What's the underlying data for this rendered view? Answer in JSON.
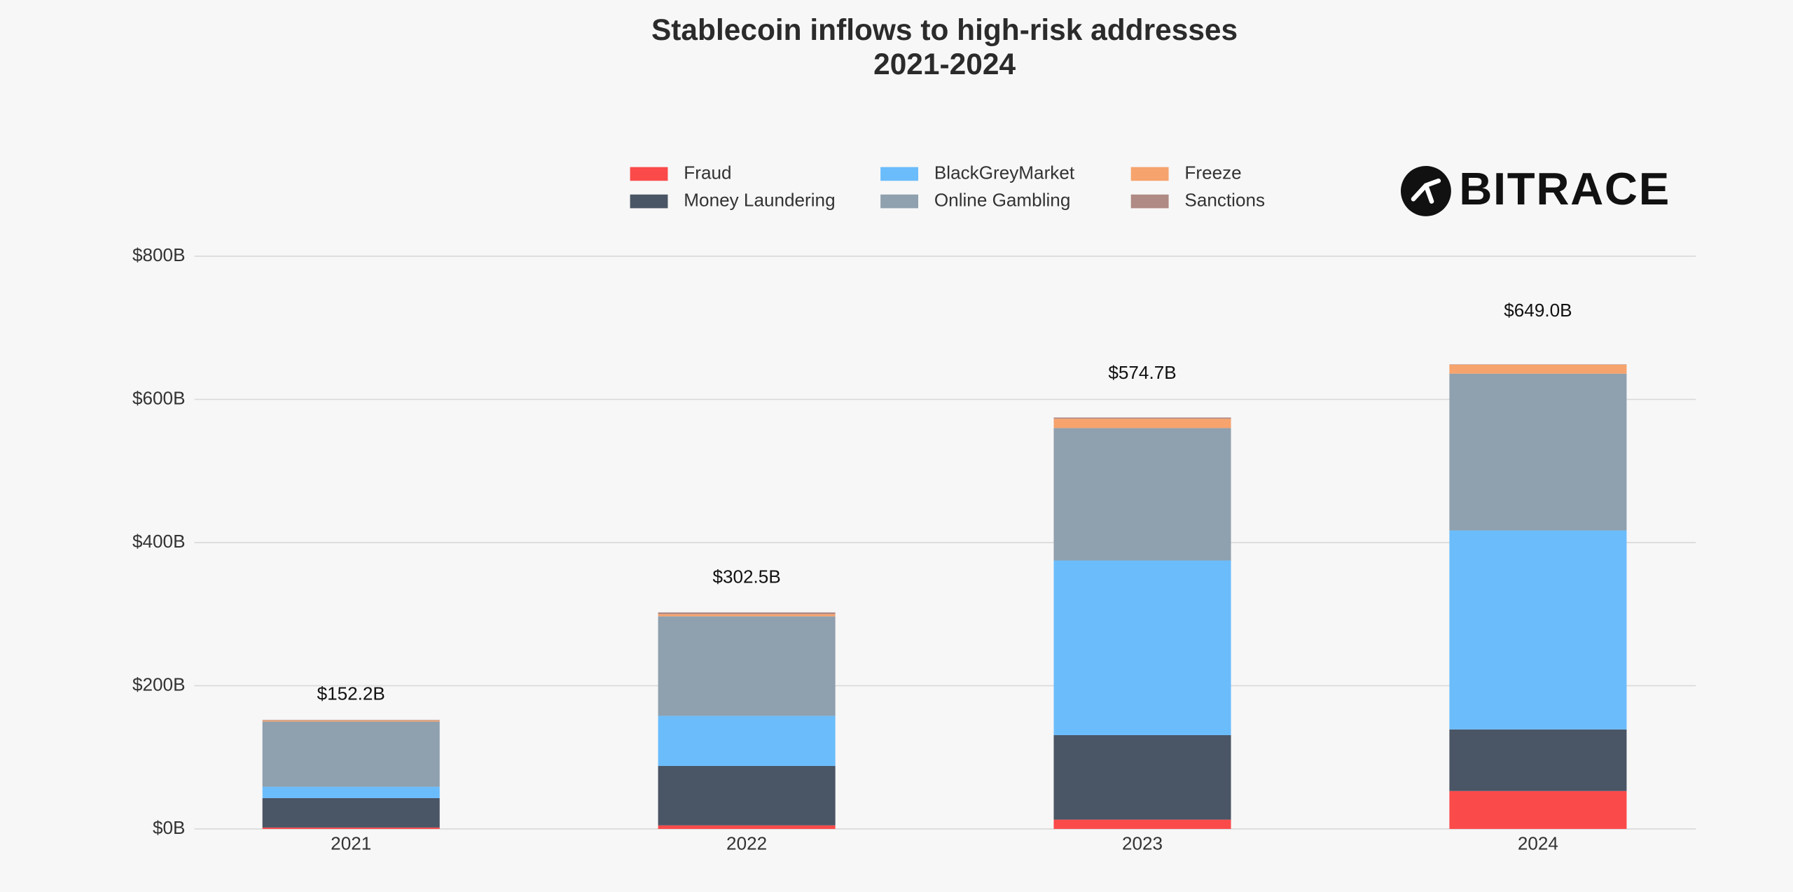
{
  "chart_data": {
    "type": "stacked-bar",
    "title": "Stablecoin inflows to high-risk addresses",
    "subtitle": "2021-2024",
    "logo": "BITRACE",
    "categories": [
      "2021",
      "2022",
      "2023",
      "2024"
    ],
    "series": [
      {
        "name": "Fraud",
        "color": "#fb4a4a",
        "values": [
          2,
          5,
          13,
          53
        ]
      },
      {
        "name": "Money Laundering",
        "color": "#4a5565",
        "values": [
          41,
          83,
          118,
          86
        ]
      },
      {
        "name": "BlackGreyMarket",
        "color": "#6bbcfb",
        "values": [
          16,
          70,
          244,
          278
        ]
      },
      {
        "name": "Online Gambling",
        "color": "#8fa0ae",
        "values": [
          91,
          139,
          185,
          219
        ]
      },
      {
        "name": "Freeze",
        "color": "#f6a36d",
        "values": [
          1.5,
          3,
          13,
          12.5
        ]
      },
      {
        "name": "Sanctions",
        "color": "#b08a84",
        "values": [
          0.7,
          2.5,
          1.7,
          0.5
        ]
      }
    ],
    "totals": {
      "values": [
        152.2,
        302.5,
        574.7,
        649.0
      ],
      "value_labels": [
        "$152.2B",
        "$302.5B",
        "$574.7B",
        "$649.0B"
      ]
    },
    "ylim": [
      0,
      800
    ],
    "yticks": [
      {
        "value": 0,
        "label": "$0B"
      },
      {
        "value": 200,
        "label": "$200B"
      },
      {
        "value": 400,
        "label": "$400B"
      },
      {
        "value": 600,
        "label": "$600B"
      },
      {
        "value": 800,
        "label": "$800B"
      }
    ],
    "grid": true
  }
}
